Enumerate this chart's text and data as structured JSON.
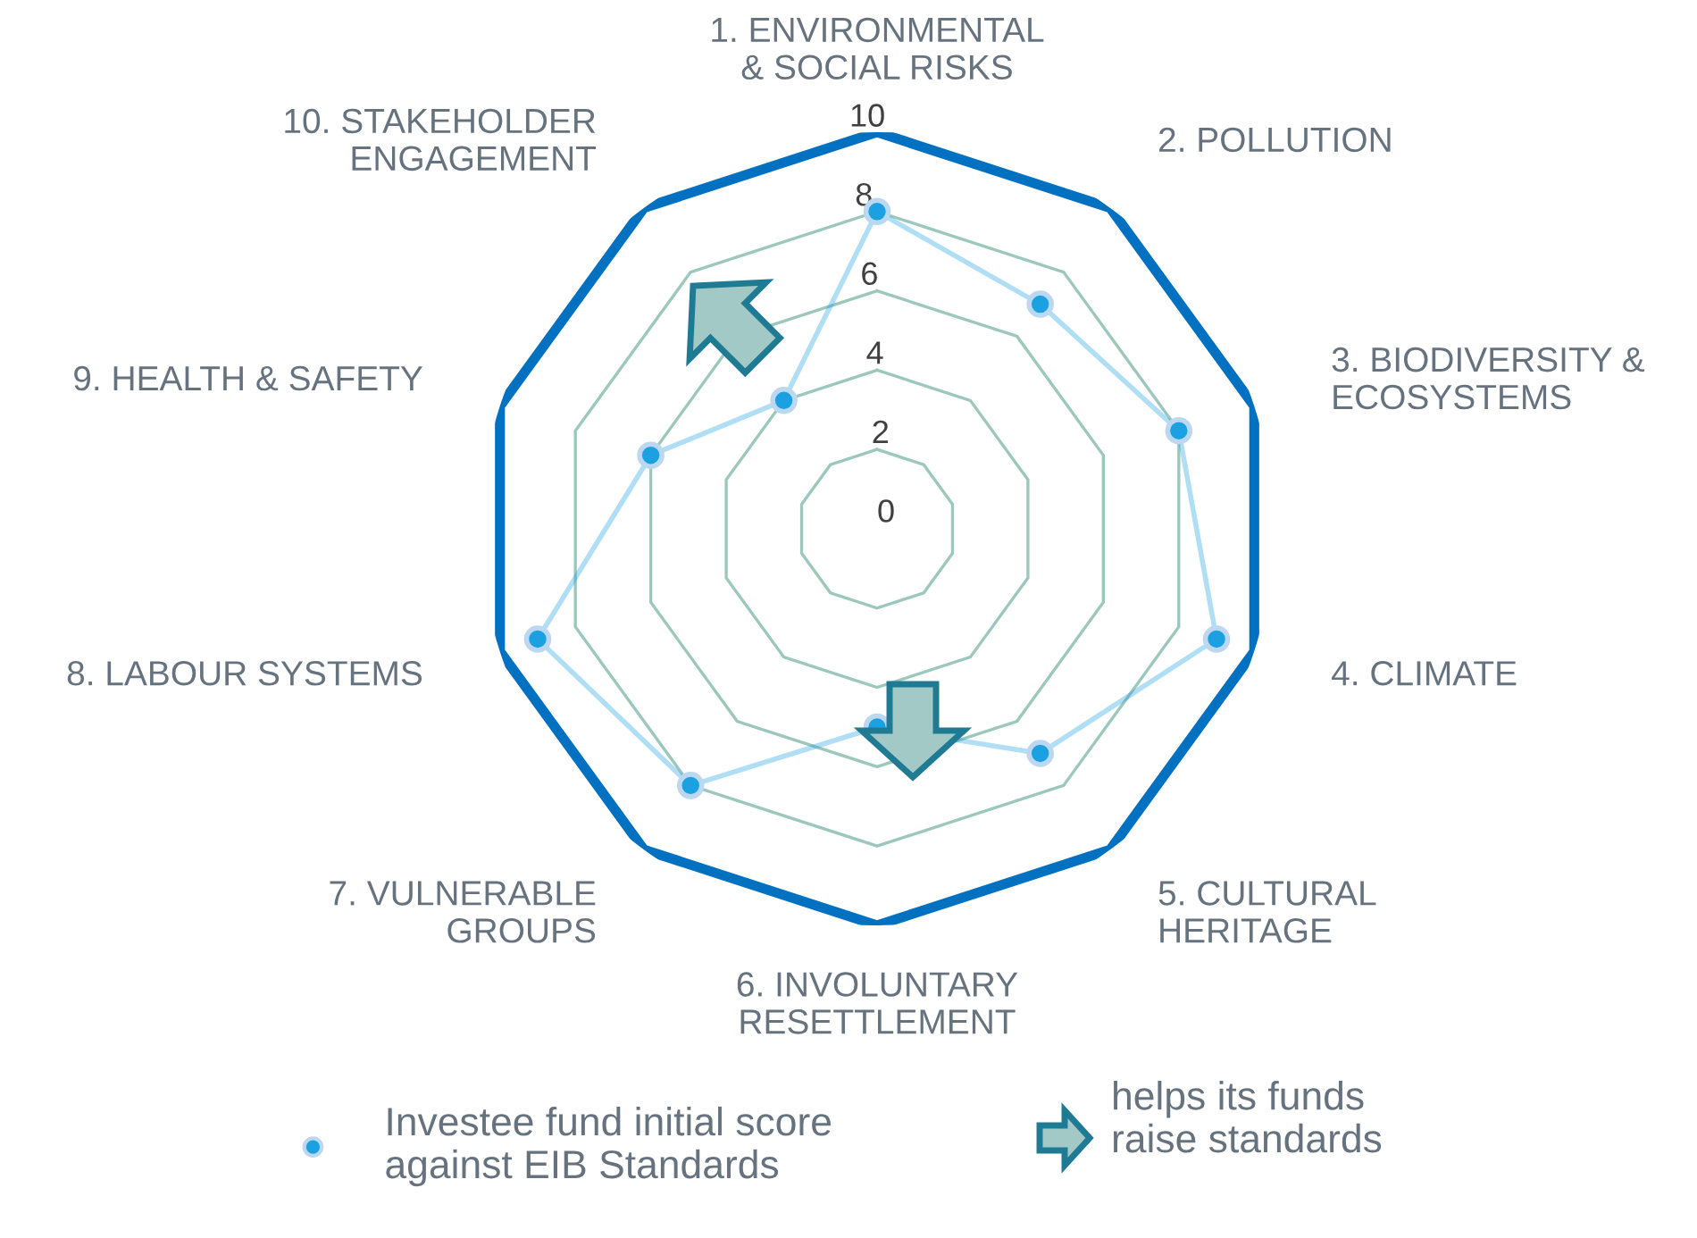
{
  "chart_data": {
    "type": "radar",
    "categories": [
      "1. ENVIRONMENTAL\n& SOCIAL RISKS",
      "2. POLLUTION",
      "3. BIODIVERSITY &\nECOSYSTEMS",
      "4. CLIMATE",
      "5. CULTURAL\nHERITAGE",
      "6. INVOLUNTARY\nRESETTLEMENT",
      "7. VULNERABLE\nGROUPS",
      "8. LABOUR SYSTEMS",
      "9. HEALTH & SAFETY",
      "10. STAKEHOLDER\nENGAGEMENT"
    ],
    "series": [
      {
        "name": "Investee fund initial score\nagainst EIB Standards",
        "color": "#1ba1e2",
        "values": [
          8,
          7,
          8,
          9,
          7,
          5,
          8,
          9,
          6,
          4
        ]
      }
    ],
    "ylim": [
      0,
      10
    ],
    "yticks": [
      0,
      2,
      4,
      6,
      8,
      10
    ],
    "grid": true,
    "legend": "bottom",
    "marker": "circle",
    "line_style": "solid",
    "annotations": [
      "helps its funds\nraise standards"
    ]
  }
}
